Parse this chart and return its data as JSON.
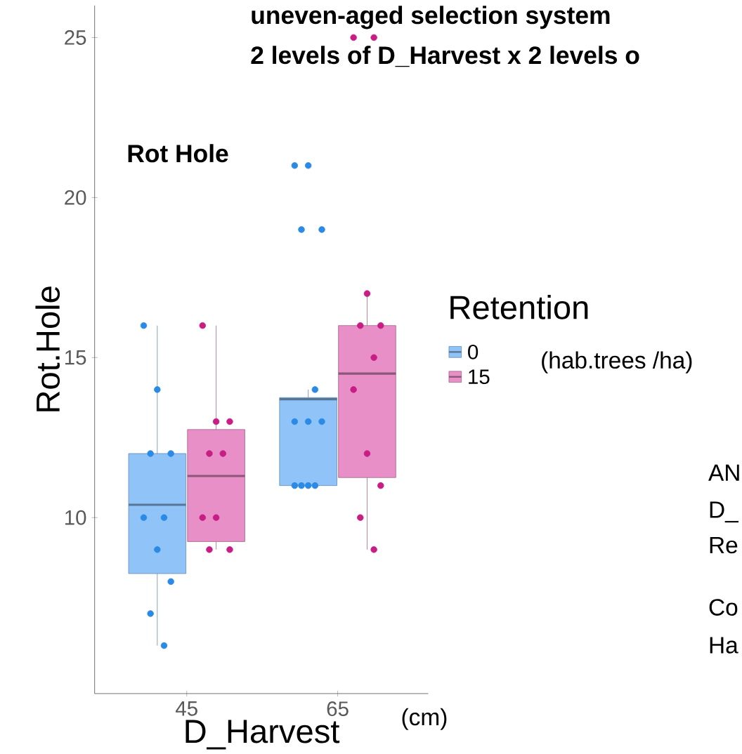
{
  "chart_data": {
    "type": "box",
    "title": "uneven-aged selection system",
    "subtitle": "2 levels of D_Harvest x 2 levels o",
    "xlabel": "D_Harvest",
    "ylabel": "Rot.Hole",
    "legend_title": "Retention",
    "legend": "right",
    "categories": [
      "45",
      "65"
    ],
    "ylim": [
      4.5,
      26
    ],
    "yticks": [
      10,
      15,
      20,
      25
    ],
    "annotations": [
      "Rot Hole",
      "(hab.trees /ha)",
      "(cm)",
      "AN",
      "D_",
      "Re",
      "Co",
      "Ha"
    ],
    "series": [
      {
        "name": "0",
        "color": "#90c4f9",
        "boxes": [
          {
            "low": 6,
            "q1": 8.25,
            "median": 10.4,
            "q3": 12,
            "high": 16
          },
          {
            "low": 11,
            "q1": 11,
            "median": 13.7,
            "q3": 13.75,
            "high": 14
          }
        ]
      },
      {
        "name": "15",
        "color": "#e78fc6",
        "boxes": [
          {
            "low": 9,
            "q1": 9.25,
            "median": 11.3,
            "q3": 12.75,
            "high": 16
          },
          {
            "low": 9,
            "q1": 11.25,
            "median": 14.5,
            "q3": 16,
            "high": 17
          }
        ]
      },
      {
        "type": "scatter",
        "color": "#2a8ae6",
        "marker": "circle",
        "x": [
          "45",
          "45",
          "45",
          "45",
          "45",
          "45",
          "45",
          "45",
          "45",
          "45",
          "65",
          "65",
          "65",
          "65",
          "65",
          "65",
          "65",
          "65",
          "65",
          "65",
          "65",
          "65"
        ],
        "values": [
          16,
          14,
          12,
          12,
          10,
          10,
          9,
          8,
          7,
          6,
          21,
          21,
          19,
          19,
          14,
          13,
          13,
          13,
          11,
          11,
          11,
          11
        ]
      },
      {
        "type": "scatter",
        "color": "#c71d85",
        "marker": "circle",
        "x": [
          "45",
          "45",
          "45",
          "45",
          "45",
          "45",
          "45",
          "45",
          "45",
          "65",
          "65",
          "65",
          "65",
          "65",
          "65",
          "65",
          "65",
          "65",
          "65",
          "65"
        ],
        "values": [
          16,
          13,
          13,
          12,
          12,
          10,
          10,
          9,
          9,
          25,
          25,
          17,
          16,
          16,
          15,
          14,
          12,
          11,
          10,
          9
        ]
      }
    ]
  }
}
